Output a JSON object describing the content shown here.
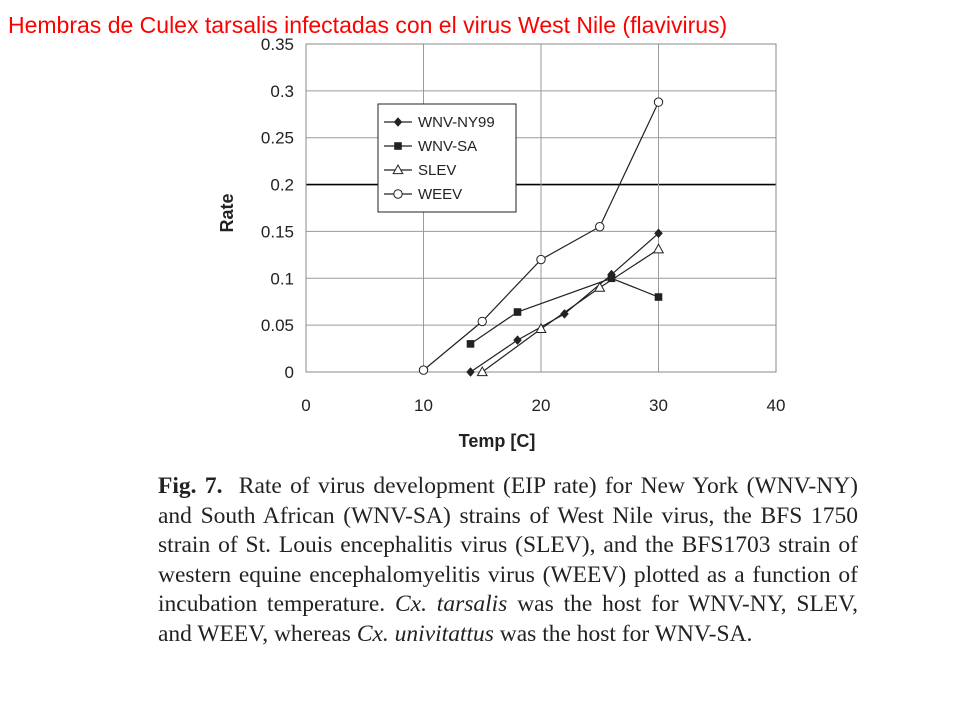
{
  "slide_title": "Hembras de Culex tarsalis infectadas con el virus West Nile (flavivirus)",
  "colors": {
    "title": "#ff0000",
    "grid": "#9a9a9a",
    "highlight_grid": "#000000",
    "series": "#222222",
    "caption": "#222222"
  },
  "chart_data": {
    "type": "line",
    "title": "",
    "xlabel": "Temp [C]",
    "ylabel": "Rate",
    "xlim": [
      0,
      40
    ],
    "ylim": [
      0,
      0.35
    ],
    "x_ticks": [
      0,
      10,
      20,
      30,
      40
    ],
    "x_tick_labels": [
      "0",
      "10",
      "20",
      "30",
      "40"
    ],
    "y_ticks": [
      0,
      0.05,
      0.1,
      0.15,
      0.2,
      0.25,
      0.3,
      0.35
    ],
    "y_tick_labels": [
      "0",
      "0.05",
      "0.1",
      "0.15",
      "0.2",
      "0.25",
      "0.3",
      "0.35"
    ],
    "highlight_gridline": 0.2,
    "legend_position": "upper-left",
    "series": [
      {
        "name": "WNV-NY99",
        "marker": "filled-diamond",
        "x": [
          14,
          18,
          22,
          26,
          30
        ],
        "y": [
          0.0,
          0.034,
          0.062,
          0.104,
          0.148
        ]
      },
      {
        "name": "WNV-SA",
        "marker": "filled-square",
        "x": [
          14,
          18,
          26,
          30
        ],
        "y": [
          0.03,
          0.064,
          0.1,
          0.08
        ]
      },
      {
        "name": "SLEV",
        "marker": "open-triangle",
        "x": [
          15,
          20,
          25,
          30
        ],
        "y": [
          0.0,
          0.046,
          0.09,
          0.131
        ]
      },
      {
        "name": "WEEV",
        "marker": "open-circle",
        "x": [
          10,
          15,
          20,
          25,
          30
        ],
        "y": [
          0.002,
          0.054,
          0.12,
          0.155,
          0.288
        ]
      }
    ]
  },
  "caption": {
    "label": "Fig. 7.",
    "text_1": "Rate of virus development (EIP rate) for New York (WNV-NY) and South African (WNV-SA) strains of West Nile virus, the BFS 1750 strain of St. Louis encephalitis virus (SLEV), and the BFS1703 strain of western equine encephalomyelitis virus (WEEV) plotted as a function of incubation temperature.",
    "species_1": "Cx. tarsalis",
    "text_2": "was the host for WNV-NY, SLEV, and WEEV, whereas",
    "species_2": "Cx. univitattus",
    "text_3": "was the host for WNV-SA."
  }
}
